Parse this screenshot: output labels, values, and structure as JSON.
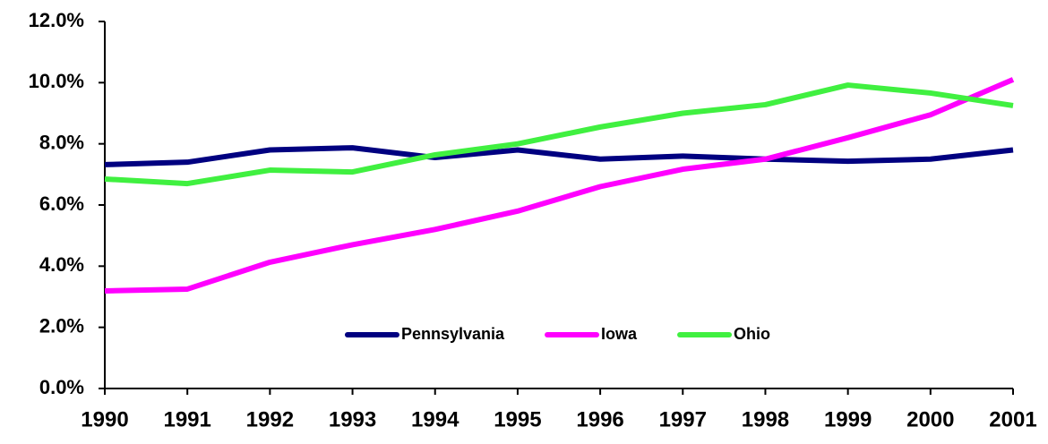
{
  "chart_data": {
    "type": "line",
    "categories": [
      "1990",
      "1991",
      "1992",
      "1993",
      "1994",
      "1995",
      "1996",
      "1997",
      "1998",
      "1999",
      "2000",
      "2001"
    ],
    "series": [
      {
        "name": "Pennsylvania",
        "color": "#000080",
        "values": [
          7.32,
          7.4,
          7.8,
          7.87,
          7.55,
          7.8,
          7.5,
          7.6,
          7.5,
          7.43,
          7.5,
          7.8
        ]
      },
      {
        "name": "Iowa",
        "color": "#ff00ff",
        "values": [
          3.19,
          3.25,
          4.13,
          4.7,
          5.2,
          5.8,
          6.6,
          7.17,
          7.5,
          8.2,
          8.95,
          10.1
        ]
      },
      {
        "name": "Ohio",
        "color": "#40f040",
        "values": [
          6.85,
          6.7,
          7.14,
          7.08,
          7.64,
          8.0,
          8.55,
          9.0,
          9.28,
          9.92,
          9.66,
          9.25
        ]
      }
    ],
    "ylim": [
      0,
      12
    ],
    "yticks": [
      {
        "value": 0,
        "label": "0.0%"
      },
      {
        "value": 2,
        "label": "2.0%"
      },
      {
        "value": 4,
        "label": "4.0%"
      },
      {
        "value": 6,
        "label": "6.0%"
      },
      {
        "value": 8,
        "label": "8.0%"
      },
      {
        "value": 10,
        "label": "10.0%"
      },
      {
        "value": 12,
        "label": "12.0%"
      }
    ],
    "grid": false,
    "legend": "bottom"
  }
}
